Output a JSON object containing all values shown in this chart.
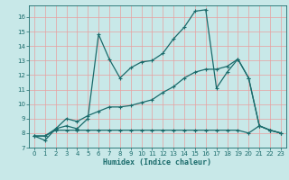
{
  "xlabel": "Humidex (Indice chaleur)",
  "xlim": [
    -0.5,
    23.5
  ],
  "ylim": [
    7,
    16.8
  ],
  "yticks": [
    7,
    8,
    9,
    10,
    11,
    12,
    13,
    14,
    15,
    16
  ],
  "xticks": [
    0,
    1,
    2,
    3,
    4,
    5,
    6,
    7,
    8,
    9,
    10,
    11,
    12,
    13,
    14,
    15,
    16,
    17,
    18,
    19,
    20,
    21,
    22,
    23
  ],
  "bg_color": "#c8e8e8",
  "line_color": "#1a6b6b",
  "grid_color": "#e8a0a0",
  "line1_x": [
    0,
    1,
    2,
    3,
    4,
    5,
    6,
    7,
    8,
    9,
    10,
    11,
    12,
    13,
    14,
    15,
    16,
    17,
    18,
    19,
    20,
    21,
    22,
    23
  ],
  "line1_y": [
    7.8,
    7.5,
    8.3,
    8.5,
    8.3,
    9.0,
    14.8,
    13.1,
    11.8,
    12.5,
    12.9,
    13.0,
    13.5,
    14.5,
    15.3,
    16.4,
    16.5,
    11.1,
    12.2,
    13.1,
    11.8,
    8.5,
    8.2,
    8.0
  ],
  "line2_x": [
    0,
    1,
    2,
    3,
    4,
    5,
    6,
    7,
    8,
    9,
    10,
    11,
    12,
    13,
    14,
    15,
    16,
    17,
    18,
    19,
    20,
    21,
    22,
    23
  ],
  "line2_y": [
    7.8,
    7.8,
    8.3,
    9.0,
    8.8,
    9.2,
    9.5,
    9.8,
    9.8,
    9.9,
    10.1,
    10.3,
    10.8,
    11.2,
    11.8,
    12.2,
    12.4,
    12.4,
    12.6,
    13.1,
    11.8,
    8.5,
    8.2,
    8.0
  ],
  "line3_x": [
    0,
    1,
    2,
    3,
    4,
    5,
    6,
    7,
    8,
    9,
    10,
    11,
    12,
    13,
    14,
    15,
    16,
    17,
    18,
    19,
    20,
    21,
    22,
    23
  ],
  "line3_y": [
    7.8,
    7.8,
    8.2,
    8.2,
    8.2,
    8.2,
    8.2,
    8.2,
    8.2,
    8.2,
    8.2,
    8.2,
    8.2,
    8.2,
    8.2,
    8.2,
    8.2,
    8.2,
    8.2,
    8.2,
    8.0,
    8.5,
    8.2,
    8.0
  ]
}
